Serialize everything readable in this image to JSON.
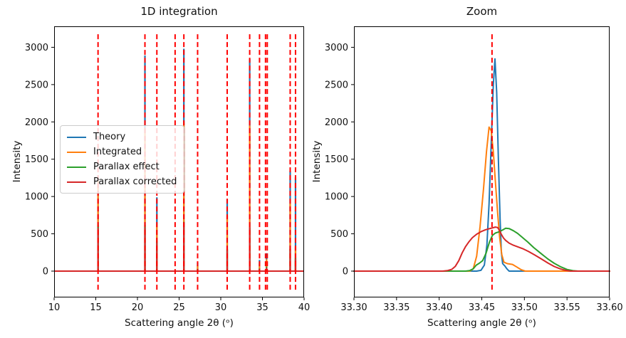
{
  "figure_title": "",
  "colors": {
    "theory": "#1f77b4",
    "integrated": "#ff7f0e",
    "parallax_effect": "#2ca02c",
    "parallax_corrected": "#d62728",
    "vline": "#ff0000",
    "axis": "#000000",
    "background": "#ffffff"
  },
  "chart_data": [
    {
      "id": "left",
      "type": "line",
      "title": "1D integration",
      "xlabel": "Scattering angle 2θ (ᵒ)",
      "ylabel": "Intensity",
      "xlim": [
        10,
        40
      ],
      "ylim": [
        -353,
        3281
      ],
      "xticks": [
        10,
        15,
        20,
        25,
        30,
        35,
        40
      ],
      "xtick_labels": [
        "10",
        "15",
        "20",
        "25",
        "30",
        "35",
        "40"
      ],
      "yticks": [
        0,
        500,
        1000,
        1500,
        2000,
        2500,
        3000
      ],
      "ytick_labels": [
        "0",
        "500",
        "1000",
        "1500",
        "2000",
        "2500",
        "3000"
      ],
      "grid": false,
      "legend": {
        "position": "center left",
        "entries": [
          "Theory",
          "Integrated",
          "Parallax effect",
          "Parallax corrected"
        ]
      },
      "series_colors": [
        "#1f77b4",
        "#ff7f0e",
        "#2ca02c",
        "#d62728"
      ],
      "baseline": 0,
      "peaks": {
        "x": [
          15.27,
          20.9,
          22.33,
          25.57,
          27.22,
          30.77,
          33.47,
          34.65,
          35.5,
          38.33,
          38.97
        ],
        "Theory": [
          1245,
          2890,
          990,
          2980,
          115,
          965,
          2845,
          150,
          240,
          1340,
          1255
        ],
        "Integrated": [
          1215,
          1920,
          630,
          1990,
          75,
          745,
          1950,
          100,
          160,
          912,
          320
        ],
        "Parallax effect": [
          615,
          620,
          400,
          660,
          30,
          295,
          580,
          35,
          60,
          300,
          180
        ],
        "Parallax corrected": [
          580,
          585,
          385,
          650,
          25,
          280,
          590,
          30,
          45,
          293,
          165
        ]
      },
      "vlines": {
        "color": "#ff0000",
        "style": "dashed",
        "span": [
          -285,
          3175
        ],
        "x": [
          15.27,
          20.9,
          22.33,
          24.52,
          25.57,
          27.22,
          30.77,
          33.47,
          34.65,
          35.37,
          35.58,
          38.33,
          38.97
        ]
      }
    },
    {
      "id": "right",
      "type": "line",
      "title": "Zoom",
      "xlabel": "Scattering angle 2θ (ᵒ)",
      "ylabel": "Intensity",
      "xlim": [
        33.3,
        33.6
      ],
      "ylim": [
        -353,
        3281
      ],
      "xticks": [
        33.3,
        33.35,
        33.4,
        33.45,
        33.5,
        33.55,
        33.6
      ],
      "xtick_labels": [
        "33.30",
        "33.35",
        "33.40",
        "33.45",
        "33.50",
        "33.55",
        "33.60"
      ],
      "yticks": [
        0,
        500,
        1000,
        1500,
        2000,
        2500,
        3000
      ],
      "ytick_labels": [
        "0",
        "500",
        "1000",
        "1500",
        "2000",
        "2500",
        "3000"
      ],
      "grid": false,
      "series_colors": [
        "#1f77b4",
        "#ff7f0e",
        "#2ca02c",
        "#d62728"
      ],
      "vlines": {
        "color": "#ff0000",
        "style": "dashed",
        "span": [
          -285,
          3175
        ],
        "x": [
          33.462
        ]
      },
      "series": [
        {
          "name": "Theory",
          "points": [
            [
              33.3,
              0
            ],
            [
              33.444,
              0
            ],
            [
              33.449,
              10
            ],
            [
              33.453,
              80
            ],
            [
              33.456,
              350
            ],
            [
              33.4585,
              900
            ],
            [
              33.461,
              1700
            ],
            [
              33.4635,
              2500
            ],
            [
              33.4655,
              2845
            ],
            [
              33.4675,
              2400
            ],
            [
              33.4695,
              1500
            ],
            [
              33.4715,
              700
            ],
            [
              33.473,
              250
            ],
            [
              33.4745,
              100
            ],
            [
              33.477,
              70
            ],
            [
              33.4795,
              30
            ],
            [
              33.482,
              0
            ],
            [
              33.6,
              0
            ]
          ]
        },
        {
          "name": "Integrated",
          "points": [
            [
              33.3,
              0
            ],
            [
              33.436,
              0
            ],
            [
              33.44,
              30
            ],
            [
              33.444,
              200
            ],
            [
              33.448,
              600
            ],
            [
              33.452,
              1100
            ],
            [
              33.4555,
              1600
            ],
            [
              33.4585,
              1930
            ],
            [
              33.461,
              1880
            ],
            [
              33.4635,
              1600
            ],
            [
              33.466,
              1200
            ],
            [
              33.4685,
              800
            ],
            [
              33.471,
              450
            ],
            [
              33.4735,
              220
            ],
            [
              33.476,
              120
            ],
            [
              33.48,
              100
            ],
            [
              33.486,
              90
            ],
            [
              33.491,
              55
            ],
            [
              33.496,
              20
            ],
            [
              33.501,
              0
            ],
            [
              33.6,
              0
            ]
          ]
        },
        {
          "name": "Parallax effect",
          "points": [
            [
              33.3,
              0
            ],
            [
              33.431,
              0
            ],
            [
              33.436,
              8
            ],
            [
              33.44,
              30
            ],
            [
              33.4435,
              80
            ],
            [
              33.447,
              105
            ],
            [
              33.451,
              140
            ],
            [
              33.455,
              240
            ],
            [
              33.459,
              390
            ],
            [
              33.4625,
              480
            ],
            [
              33.466,
              510
            ],
            [
              33.47,
              525
            ],
            [
              33.474,
              548
            ],
            [
              33.478,
              575
            ],
            [
              33.482,
              570
            ],
            [
              33.487,
              542
            ],
            [
              33.492,
              505
            ],
            [
              33.498,
              448
            ],
            [
              33.504,
              390
            ],
            [
              33.511,
              315
            ],
            [
              33.519,
              240
            ],
            [
              33.527,
              168
            ],
            [
              33.535,
              105
            ],
            [
              33.543,
              55
            ],
            [
              33.55,
              22
            ],
            [
              33.557,
              6
            ],
            [
              33.563,
              0
            ],
            [
              33.6,
              0
            ]
          ]
        },
        {
          "name": "Parallax corrected",
          "points": [
            [
              33.3,
              0
            ],
            [
              33.404,
              0
            ],
            [
              33.41,
              8
            ],
            [
              33.415,
              25
            ],
            [
              33.419,
              65
            ],
            [
              33.423,
              140
            ],
            [
              33.427,
              245
            ],
            [
              33.431,
              330
            ],
            [
              33.435,
              395
            ],
            [
              33.439,
              448
            ],
            [
              33.444,
              495
            ],
            [
              33.449,
              528
            ],
            [
              33.454,
              552
            ],
            [
              33.458,
              566
            ],
            [
              33.462,
              578
            ],
            [
              33.466,
              590
            ],
            [
              33.4685,
              585
            ],
            [
              33.4705,
              552
            ],
            [
              33.473,
              492
            ],
            [
              33.4755,
              443
            ],
            [
              33.478,
              412
            ],
            [
              33.482,
              376
            ],
            [
              33.487,
              347
            ],
            [
              33.492,
              326
            ],
            [
              33.498,
              301
            ],
            [
              33.505,
              262
            ],
            [
              33.512,
              216
            ],
            [
              33.52,
              162
            ],
            [
              33.528,
              106
            ],
            [
              33.535,
              62
            ],
            [
              33.542,
              30
            ],
            [
              33.548,
              11
            ],
            [
              33.554,
              0
            ],
            [
              33.6,
              0
            ]
          ]
        }
      ]
    }
  ]
}
